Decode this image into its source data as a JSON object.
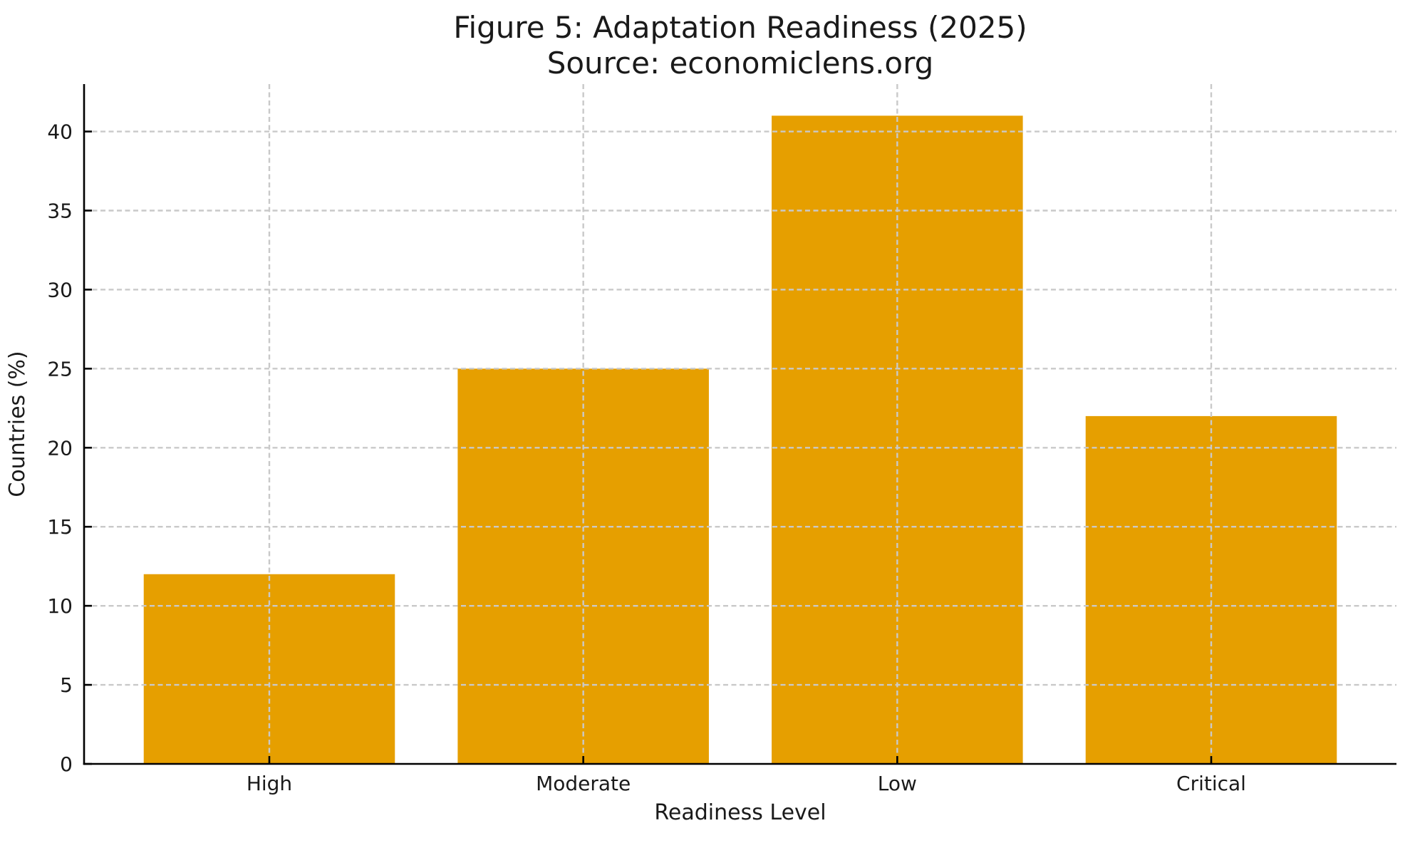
{
  "chart_data": {
    "type": "bar",
    "title": "Figure 5: Adaptation Readiness (2025)",
    "subtitle": "Source: economiclens.org",
    "xlabel": "Readiness Level",
    "ylabel": "Countries (%)",
    "categories": [
      "High",
      "Moderate",
      "Low",
      "Critical"
    ],
    "values": [
      12,
      25,
      41,
      22
    ],
    "ylim": [
      0,
      43
    ],
    "yticks": [
      0,
      5,
      10,
      15,
      20,
      25,
      30,
      35,
      40
    ],
    "bar_color": "#E69F00",
    "grid": true,
    "grid_style": "dashed",
    "grid_color": "#c9c9c9",
    "axis_color": "#000000",
    "text_color": "#1a1a1a",
    "background": "#ffffff",
    "legend": "none",
    "gridlines_over_bars": true
  }
}
